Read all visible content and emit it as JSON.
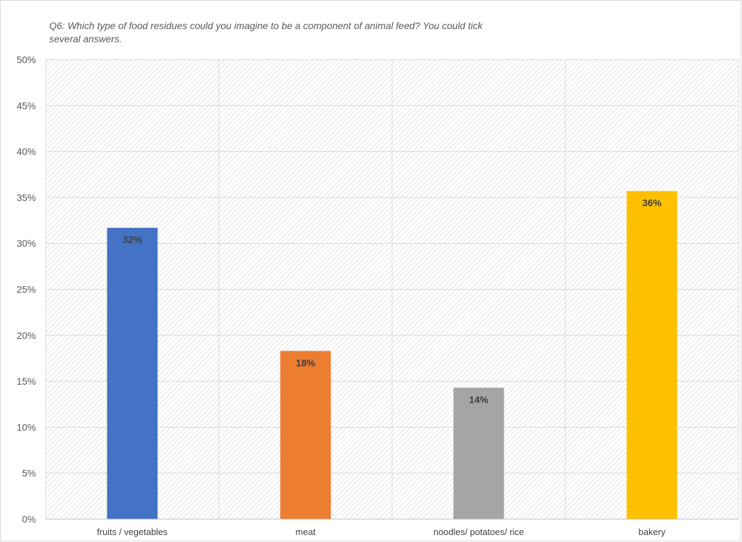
{
  "chart_data": {
    "type": "bar",
    "title": "Q6: Which type of food residues could you imagine to be a component of animal feed? You could tick several answers.",
    "title_lines": [
      "Q6: Which type of food residues could you imagine to be a component of animal feed? You could tick",
      "several answers."
    ],
    "categories": [
      "fruits / vegetables",
      "meat",
      "noodles/ potatoes/ rice",
      "bakery"
    ],
    "values": [
      31.7,
      18.3,
      14.3,
      35.7
    ],
    "data_labels": [
      "32%",
      "18%",
      "14%",
      "36%"
    ],
    "colors": [
      "#4472c4",
      "#ed7d31",
      "#a5a5a5",
      "#ffc000"
    ],
    "xlabel": "",
    "ylabel": "",
    "ylim": [
      0,
      50
    ],
    "y_ticks": [
      0,
      5,
      10,
      15,
      20,
      25,
      30,
      35,
      40,
      45,
      50
    ],
    "y_tick_labels": [
      "0%",
      "5%",
      "10%",
      "15%",
      "20%",
      "25%",
      "30%",
      "35%",
      "40%",
      "45%",
      "50%"
    ],
    "grid": true,
    "plot_background": "hatched",
    "legend": "none"
  }
}
